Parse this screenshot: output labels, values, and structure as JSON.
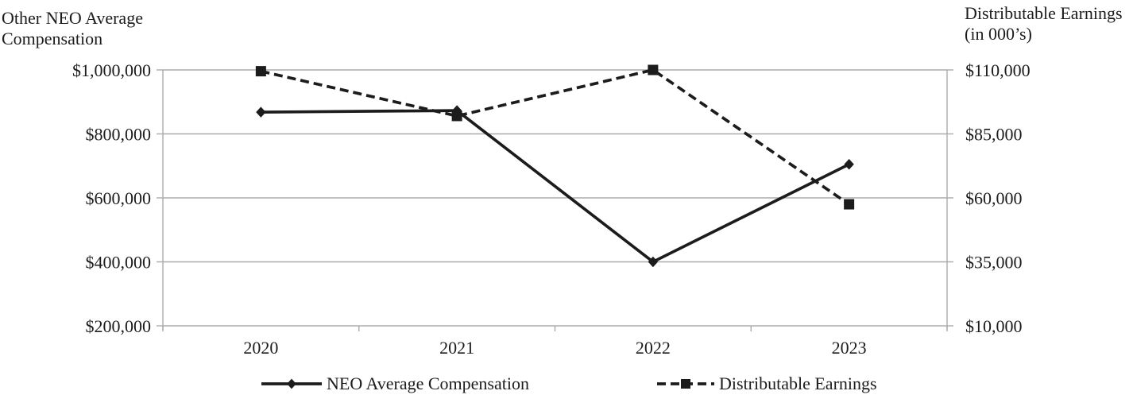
{
  "chart_data": {
    "type": "line",
    "categories": [
      "2020",
      "2021",
      "2022",
      "2023"
    ],
    "series": [
      {
        "name": "NEO Average Compensation",
        "axis": "left",
        "style": "solid",
        "marker": "diamond",
        "values": [
          868000,
          873000,
          400000,
          705000
        ]
      },
      {
        "name": "Distributable Earnings",
        "axis": "right",
        "style": "dashed",
        "marker": "square",
        "values": [
          109500,
          92000,
          110000,
          57500
        ]
      }
    ],
    "left_axis": {
      "title_line1": "Other NEO Average",
      "title_line2": "Compensation",
      "min": 200000,
      "max": 1000000,
      "tick_step": 200000,
      "tick_labels": [
        "$200,000",
        "$400,000",
        "$600,000",
        "$800,000",
        "$1,000,000"
      ]
    },
    "right_axis": {
      "title_line1": "Distributable Earnings",
      "title_line2": "(in 000’s)",
      "min": 10000,
      "max": 110000,
      "tick_step": 25000,
      "tick_labels": [
        "$10,000",
        "$35,000",
        "$60,000",
        "$85,000",
        "$110,000"
      ]
    },
    "legend": {
      "position": "bottom",
      "items": [
        "NEO Average Compensation",
        "Distributable Earnings"
      ]
    },
    "layout_hints": {
      "grid": "horizontal-only",
      "x_ticks": "category-boundaries"
    },
    "colors": {
      "series": "#1c1c1c",
      "gridline": "#ababab",
      "axis": "#ababab",
      "text": "#1c1c1c",
      "background": "#ffffff"
    }
  }
}
